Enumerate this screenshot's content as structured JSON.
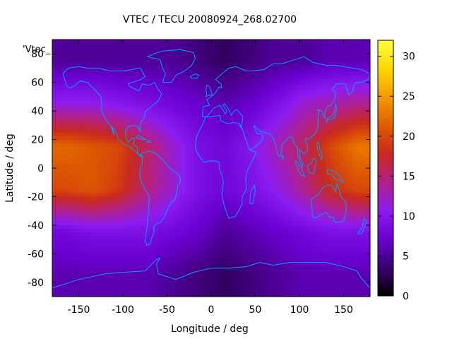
{
  "chart_data": {
    "type": "heatmap",
    "title": "VTEC / TECU 20080924_268.02700",
    "xlabel": "Longitude / deg",
    "ylabel": "Latitude / deg",
    "xlim": [
      -180,
      180
    ],
    "ylim": [
      -90,
      90
    ],
    "xticks": [
      -150,
      -100,
      -50,
      0,
      50,
      100,
      150
    ],
    "yticks": [
      -80,
      -60,
      -40,
      -20,
      0,
      20,
      40,
      60,
      80
    ],
    "colorbar": {
      "min": 0,
      "max": 32,
      "ticks": [
        0,
        5,
        10,
        15,
        20,
        25,
        30
      ],
      "colors": [
        "#000000",
        "#3a0070",
        "#6a00d0",
        "#8c1cf0",
        "#b0208a",
        "#c8281e",
        "#e05c00",
        "#f49a00",
        "#ffd800",
        "#ffff40"
      ]
    },
    "legend_entry": "'Vtec_",
    "grid": {
      "lon_step_deg": 30,
      "lat_step_deg": 30,
      "lats": [
        75,
        45,
        15,
        -15,
        -45,
        -75
      ],
      "lons": [
        -165,
        -135,
        -105,
        -75,
        -45,
        -15,
        15,
        45,
        75,
        105,
        135,
        165
      ],
      "values": [
        [
          5,
          5,
          5,
          5,
          5,
          4,
          3,
          4,
          5,
          5,
          6,
          6
        ],
        [
          11,
          11,
          10,
          9,
          8,
          7,
          6,
          7,
          9,
          12,
          13,
          14
        ],
        [
          22,
          21,
          20,
          16,
          12,
          9,
          8,
          10,
          13,
          16,
          20,
          23
        ],
        [
          20,
          21,
          19,
          15,
          12,
          9,
          8,
          9,
          11,
          14,
          18,
          20
        ],
        [
          8,
          9,
          9,
          9,
          8,
          7,
          5,
          6,
          7,
          8,
          9,
          9
        ],
        [
          6,
          6,
          6,
          6,
          5,
          4,
          3,
          4,
          5,
          6,
          6,
          6
        ]
      ]
    },
    "coastline_color": "#00a0ff"
  }
}
